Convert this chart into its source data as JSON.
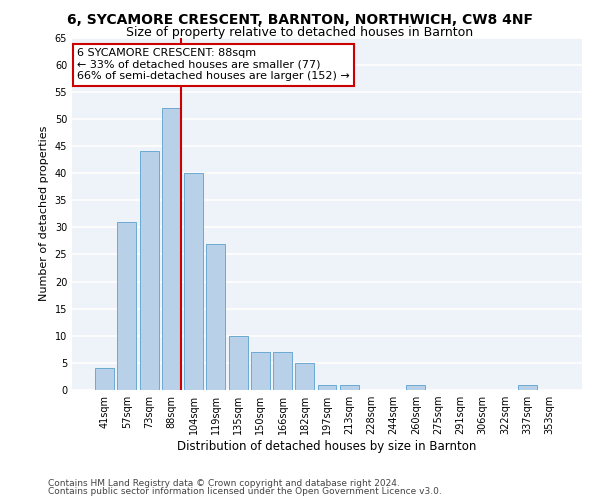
{
  "title1": "6, SYCAMORE CRESCENT, BARNTON, NORTHWICH, CW8 4NF",
  "title2": "Size of property relative to detached houses in Barnton",
  "xlabel": "Distribution of detached houses by size in Barnton",
  "ylabel": "Number of detached properties",
  "categories": [
    "41sqm",
    "57sqm",
    "73sqm",
    "88sqm",
    "104sqm",
    "119sqm",
    "135sqm",
    "150sqm",
    "166sqm",
    "182sqm",
    "197sqm",
    "213sqm",
    "228sqm",
    "244sqm",
    "260sqm",
    "275sqm",
    "291sqm",
    "306sqm",
    "322sqm",
    "337sqm",
    "353sqm"
  ],
  "values": [
    4,
    31,
    44,
    52,
    40,
    27,
    10,
    7,
    7,
    5,
    1,
    1,
    0,
    0,
    1,
    0,
    0,
    0,
    0,
    1,
    0
  ],
  "bar_color": "#b8d0e8",
  "bar_edge_color": "#6aaad4",
  "vline_color": "#cc0000",
  "annotation_text": "6 SYCAMORE CRESCENT: 88sqm\n← 33% of detached houses are smaller (77)\n66% of semi-detached houses are larger (152) →",
  "annotation_box_color": "white",
  "annotation_box_edge": "#cc0000",
  "ylim": [
    0,
    65
  ],
  "yticks": [
    0,
    5,
    10,
    15,
    20,
    25,
    30,
    35,
    40,
    45,
    50,
    55,
    60,
    65
  ],
  "footer1": "Contains HM Land Registry data © Crown copyright and database right 2024.",
  "footer2": "Contains public sector information licensed under the Open Government Licence v3.0.",
  "bg_color": "#eef2f9",
  "grid_color": "white",
  "title1_fontsize": 10,
  "title2_fontsize": 9,
  "xlabel_fontsize": 8.5,
  "ylabel_fontsize": 8,
  "tick_fontsize": 7,
  "annotation_fontsize": 8,
  "footer_fontsize": 6.5
}
